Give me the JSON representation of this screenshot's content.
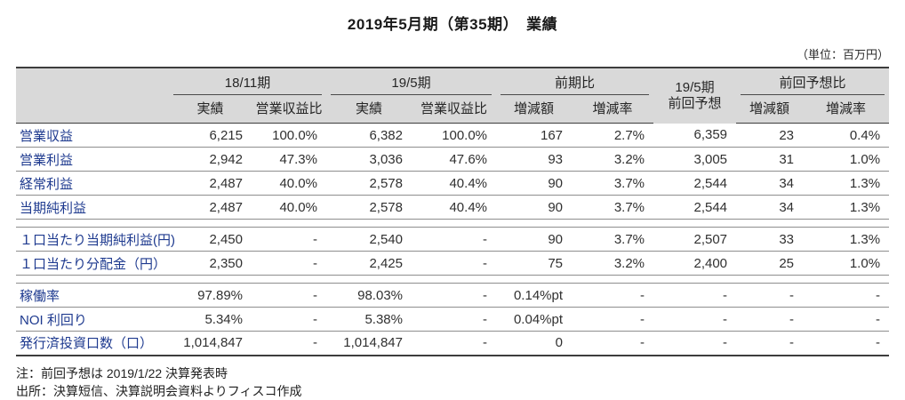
{
  "title": "2019年5月期（第35期）　業績",
  "unit_note": "（単位：百万円）",
  "colors": {
    "label_blue": "#1e3a8f",
    "header_bg": "#d9d9d9"
  },
  "table": {
    "groups": [
      {
        "label": "18/11期",
        "span": 2,
        "underline": true
      },
      {
        "label": "19/5期",
        "span": 2,
        "underline": true
      },
      {
        "label": "前期比",
        "span": 2,
        "underline": true
      },
      {
        "label": "19/5期",
        "label2": "前回予想",
        "span": 1,
        "underline": false
      },
      {
        "label": "前回予想比",
        "span": 2,
        "underline": true
      }
    ],
    "sub_headers": [
      "実績",
      "営業収益比",
      "実績",
      "営業収益比",
      "増減額",
      "増減率",
      "増減額",
      "増減率"
    ],
    "sections": [
      {
        "rows": [
          {
            "label": "営業収益",
            "values": [
              "6,215",
              "100.0%",
              "6,382",
              "100.0%",
              "167",
              "2.7%",
              "6,359",
              "23",
              "0.4%"
            ]
          },
          {
            "label": "営業利益",
            "values": [
              "2,942",
              "47.3%",
              "3,036",
              "47.6%",
              "93",
              "3.2%",
              "3,005",
              "31",
              "1.0%"
            ]
          },
          {
            "label": "経常利益",
            "values": [
              "2,487",
              "40.0%",
              "2,578",
              "40.4%",
              "90",
              "3.7%",
              "2,544",
              "34",
              "1.3%"
            ]
          },
          {
            "label": "当期純利益",
            "values": [
              "2,487",
              "40.0%",
              "2,578",
              "40.4%",
              "90",
              "3.7%",
              "2,544",
              "34",
              "1.3%"
            ]
          }
        ]
      },
      {
        "rows": [
          {
            "label": "１口当たり当期純利益(円)",
            "values": [
              "2,450",
              "-",
              "2,540",
              "-",
              "90",
              "3.7%",
              "2,507",
              "33",
              "1.3%"
            ]
          },
          {
            "label": "１口当たり分配金（円）",
            "values": [
              "2,350",
              "-",
              "2,425",
              "-",
              "75",
              "3.2%",
              "2,400",
              "25",
              "1.0%"
            ]
          }
        ]
      },
      {
        "rows": [
          {
            "label": "稼働率",
            "values": [
              "97.89%",
              "-",
              "98.03%",
              "-",
              "0.14%pt",
              "-",
              "-",
              "-",
              "-"
            ]
          },
          {
            "label": "NOI 利回り",
            "values": [
              "5.34%",
              "-",
              "5.38%",
              "-",
              "0.04%pt",
              "-",
              "-",
              "-",
              "-"
            ]
          },
          {
            "label": "発行済投資口数（口）",
            "values": [
              "1,014,847",
              "-",
              "1,014,847",
              "-",
              "0",
              "-",
              "-",
              "-",
              "-"
            ]
          }
        ]
      }
    ]
  },
  "notes": [
    "注：前回予想は 2019/1/22 決算発表時",
    "出所：決算短信、決算説明会資料よりフィスコ作成"
  ]
}
